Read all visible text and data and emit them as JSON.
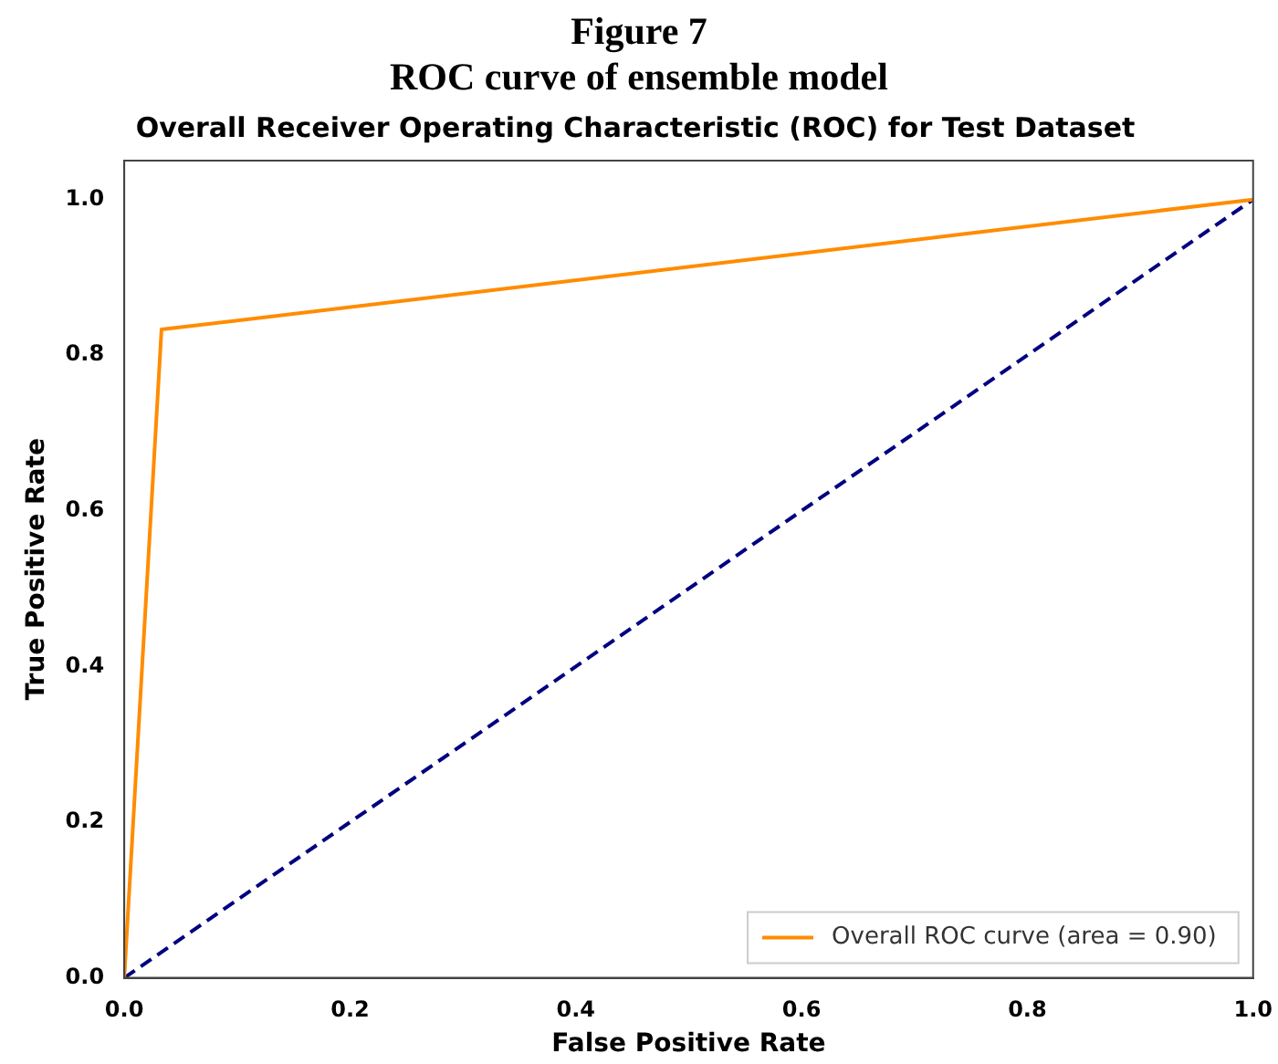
{
  "chart_data": {
    "type": "line",
    "title": "Overall Receiver Operating Characteristic (ROC) for Test Dataset",
    "xlabel": "False Positive Rate",
    "ylabel": "True Positive Rate",
    "annotations": [
      "Figure 7",
      "ROC curve of ensemble model"
    ],
    "series": [
      {
        "name": "Overall ROC curve (area = 0.90)",
        "color": "#ff8c00",
        "x": [
          0,
          0.033,
          1
        ],
        "values": [
          0,
          0.833,
          1
        ],
        "line_style": "solid"
      },
      {
        "color": "#000080",
        "x": [
          0,
          1
        ],
        "values": [
          0,
          1
        ],
        "line_style": "dashed"
      }
    ],
    "xlim": [
      0,
      1
    ],
    "xticks": [
      {
        "value": 0,
        "label": "0.0"
      },
      0.2,
      0.4,
      0.6,
      0.8,
      {
        "value": 1,
        "label": "1.0"
      }
    ],
    "ylim": [
      0,
      1.05
    ],
    "yticks": [
      {
        "value": 0,
        "label": "0.0"
      },
      0.2,
      0.4,
      0.6,
      0.8,
      {
        "value": 1,
        "label": "1.0"
      }
    ],
    "grid": false,
    "legend": "bottom right",
    "marker": "none"
  }
}
